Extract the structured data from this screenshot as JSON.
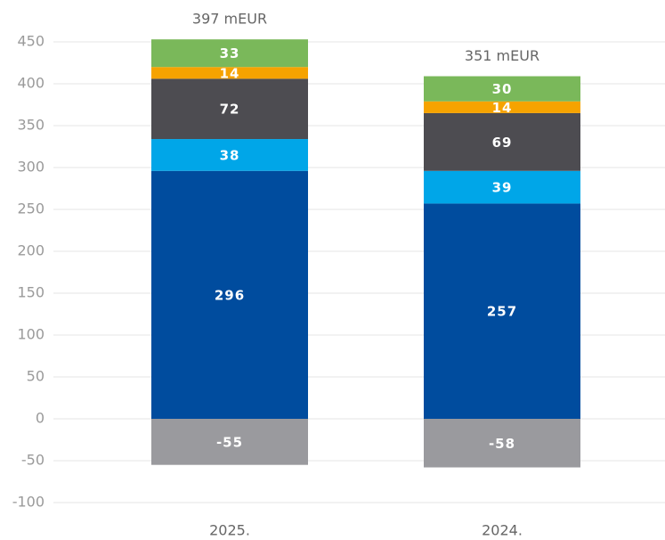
{
  "chart_data": {
    "type": "stacked_bar",
    "categories": [
      "2025.",
      "2024."
    ],
    "total_labels": [
      "397 mEUR",
      "351 mEUR"
    ],
    "series": [
      {
        "color": "#9a9a9e",
        "values": [
          -55,
          -58
        ]
      },
      {
        "color": "#004c9e",
        "values": [
          296,
          257
        ]
      },
      {
        "color": "#00a6e8",
        "values": [
          38,
          39
        ]
      },
      {
        "color": "#4d4c51",
        "values": [
          72,
          69
        ]
      },
      {
        "color": "#f6a300",
        "values": [
          14,
          14
        ]
      },
      {
        "color": "#7ab85a",
        "values": [
          33,
          30
        ]
      }
    ],
    "ylim": [
      -100,
      450
    ],
    "yticks": [
      -100,
      -50,
      0,
      50,
      100,
      150,
      200,
      250,
      300,
      350,
      400,
      450
    ],
    "grid": true
  }
}
